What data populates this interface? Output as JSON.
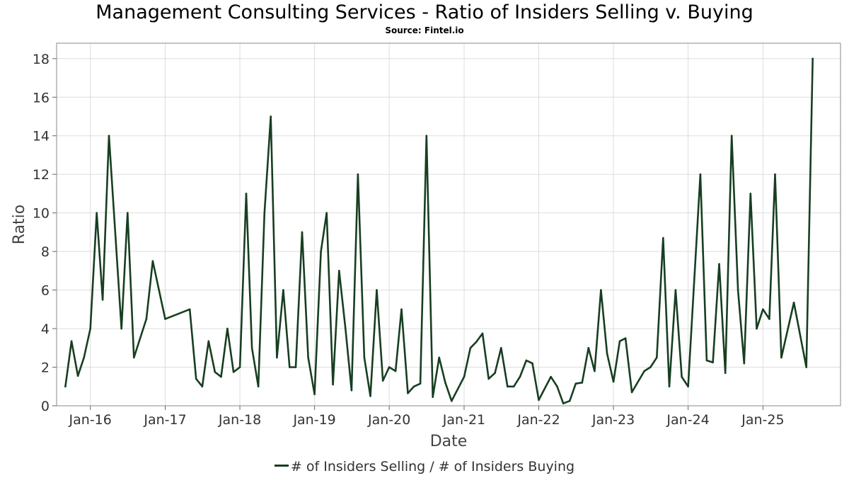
{
  "header": {
    "title": "Management Consulting Services - Ratio of Insiders Selling v. Buying",
    "subtitle": "Source: Fintel.io"
  },
  "colors": {
    "series": "#173e21",
    "grid": "#dddddd",
    "frame": "#888888"
  },
  "chart_data": {
    "type": "line",
    "title": "Management Consulting Services - Ratio of Insiders Selling v. Buying",
    "subtitle": "Source: Fintel.io",
    "xlabel": "Date",
    "ylabel": "Ratio",
    "x_type": "date",
    "xlim": [
      "2015-07-20",
      "2026-01-15"
    ],
    "ylim": [
      0,
      18.8
    ],
    "y_ticks": [
      0,
      2,
      4,
      6,
      8,
      10,
      12,
      14,
      16,
      18
    ],
    "x_ticks": [
      {
        "date": "2016-01-01",
        "label": "Jan-16"
      },
      {
        "date": "2017-01-01",
        "label": "Jan-17"
      },
      {
        "date": "2018-01-01",
        "label": "Jan-18"
      },
      {
        "date": "2019-01-01",
        "label": "Jan-19"
      },
      {
        "date": "2020-01-01",
        "label": "Jan-20"
      },
      {
        "date": "2021-01-01",
        "label": "Jan-21"
      },
      {
        "date": "2022-01-01",
        "label": "Jan-22"
      },
      {
        "date": "2023-01-01",
        "label": "Jan-23"
      },
      {
        "date": "2024-01-01",
        "label": "Jan-24"
      },
      {
        "date": "2025-01-01",
        "label": "Jan-25"
      }
    ],
    "grid": true,
    "legend_position": "bottom-center",
    "series": [
      {
        "name": "# of Insiders Selling / # of Insiders Buying",
        "color": "#173e21",
        "points": [
          [
            "2015-09-01",
            1.0
          ],
          [
            "2015-10-01",
            3.35
          ],
          [
            "2015-11-01",
            1.55
          ],
          [
            "2015-12-01",
            2.5
          ],
          [
            "2016-01-01",
            4.0
          ],
          [
            "2016-02-01",
            10.0
          ],
          [
            "2016-03-01",
            5.5
          ],
          [
            "2016-04-01",
            14.0
          ],
          [
            "2016-06-01",
            4.0
          ],
          [
            "2016-07-01",
            10.0
          ],
          [
            "2016-08-01",
            2.5
          ],
          [
            "2016-10-01",
            4.5
          ],
          [
            "2016-11-01",
            7.5
          ],
          [
            "2017-01-01",
            4.5
          ],
          [
            "2017-05-01",
            5.0
          ],
          [
            "2017-06-01",
            1.4
          ],
          [
            "2017-07-01",
            1.0
          ],
          [
            "2017-08-01",
            3.35
          ],
          [
            "2017-09-01",
            1.75
          ],
          [
            "2017-10-01",
            1.5
          ],
          [
            "2017-11-01",
            4.0
          ],
          [
            "2017-12-01",
            1.75
          ],
          [
            "2018-01-01",
            2.0
          ],
          [
            "2018-02-01",
            11.0
          ],
          [
            "2018-03-01",
            3.0
          ],
          [
            "2018-04-01",
            1.0
          ],
          [
            "2018-05-01",
            10.0
          ],
          [
            "2018-06-01",
            15.0
          ],
          [
            "2018-07-01",
            2.5
          ],
          [
            "2018-08-01",
            6.0
          ],
          [
            "2018-09-01",
            2.0
          ],
          [
            "2018-10-01",
            2.0
          ],
          [
            "2018-11-01",
            9.0
          ],
          [
            "2018-12-01",
            2.5
          ],
          [
            "2019-01-01",
            0.6
          ],
          [
            "2019-02-01",
            8.0
          ],
          [
            "2019-03-01",
            10.0
          ],
          [
            "2019-04-01",
            1.1
          ],
          [
            "2019-05-01",
            7.0
          ],
          [
            "2019-06-01",
            4.0
          ],
          [
            "2019-07-01",
            0.8
          ],
          [
            "2019-08-01",
            12.0
          ],
          [
            "2019-09-01",
            2.5
          ],
          [
            "2019-10-01",
            0.5
          ],
          [
            "2019-11-01",
            6.0
          ],
          [
            "2019-12-01",
            1.3
          ],
          [
            "2020-01-01",
            2.0
          ],
          [
            "2020-02-01",
            1.8
          ],
          [
            "2020-03-01",
            5.0
          ],
          [
            "2020-04-01",
            0.65
          ],
          [
            "2020-05-01",
            1.0
          ],
          [
            "2020-06-01",
            1.15
          ],
          [
            "2020-07-01",
            14.0
          ],
          [
            "2020-08-01",
            0.45
          ],
          [
            "2020-09-01",
            2.5
          ],
          [
            "2020-10-01",
            1.2
          ],
          [
            "2020-11-01",
            0.25
          ],
          [
            "2021-01-01",
            1.5
          ],
          [
            "2021-02-01",
            3.0
          ],
          [
            "2021-03-01",
            3.3
          ],
          [
            "2021-04-01",
            3.75
          ],
          [
            "2021-05-01",
            1.4
          ],
          [
            "2021-06-01",
            1.7
          ],
          [
            "2021-07-01",
            3.0
          ],
          [
            "2021-08-01",
            1.0
          ],
          [
            "2021-09-01",
            1.0
          ],
          [
            "2021-10-01",
            1.5
          ],
          [
            "2021-11-01",
            2.35
          ],
          [
            "2021-12-01",
            2.2
          ],
          [
            "2022-01-01",
            0.3
          ],
          [
            "2022-03-01",
            1.5
          ],
          [
            "2022-04-01",
            1.0
          ],
          [
            "2022-05-01",
            0.12
          ],
          [
            "2022-06-01",
            0.25
          ],
          [
            "2022-07-01",
            1.15
          ],
          [
            "2022-08-01",
            1.2
          ],
          [
            "2022-09-01",
            3.0
          ],
          [
            "2022-10-01",
            1.8
          ],
          [
            "2022-11-01",
            6.0
          ],
          [
            "2022-12-01",
            2.7
          ],
          [
            "2023-01-01",
            1.25
          ],
          [
            "2023-02-01",
            3.35
          ],
          [
            "2023-03-01",
            3.5
          ],
          [
            "2023-04-01",
            0.7
          ],
          [
            "2023-06-01",
            1.8
          ],
          [
            "2023-07-01",
            2.0
          ],
          [
            "2023-08-01",
            2.5
          ],
          [
            "2023-09-01",
            8.7
          ],
          [
            "2023-10-01",
            1.0
          ],
          [
            "2023-11-01",
            6.0
          ],
          [
            "2023-12-01",
            1.5
          ],
          [
            "2024-01-01",
            1.0
          ],
          [
            "2024-03-01",
            12.0
          ],
          [
            "2024-04-01",
            2.35
          ],
          [
            "2024-05-01",
            2.25
          ],
          [
            "2024-06-01",
            7.35
          ],
          [
            "2024-07-01",
            1.7
          ],
          [
            "2024-08-01",
            14.0
          ],
          [
            "2024-09-01",
            6.0
          ],
          [
            "2024-10-01",
            2.2
          ],
          [
            "2024-11-01",
            11.0
          ],
          [
            "2024-12-01",
            4.0
          ],
          [
            "2025-01-01",
            5.0
          ],
          [
            "2025-02-01",
            4.5
          ],
          [
            "2025-03-01",
            12.0
          ],
          [
            "2025-04-01",
            2.5
          ],
          [
            "2025-06-01",
            5.35
          ],
          [
            "2025-08-01",
            2.0
          ],
          [
            "2025-09-01",
            18.0
          ]
        ]
      }
    ]
  }
}
